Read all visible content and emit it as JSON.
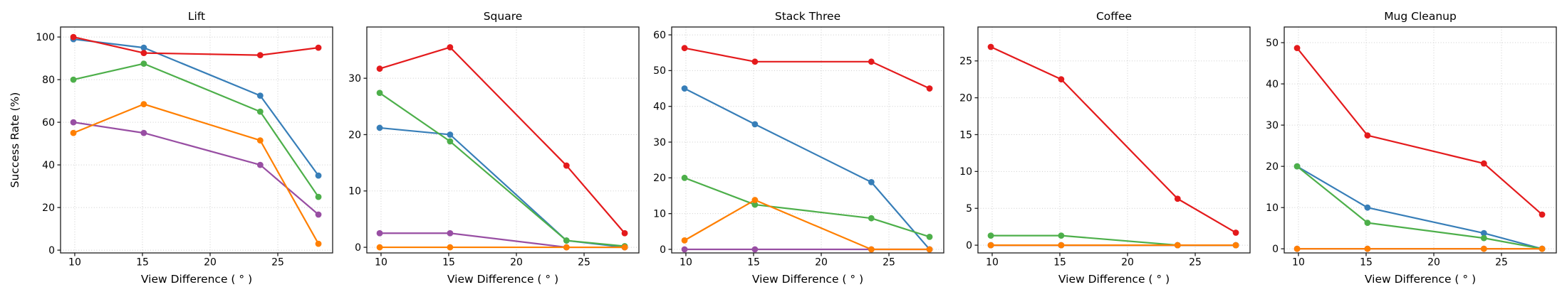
{
  "figure": {
    "background": "#ffffff",
    "shared_ylabel": "Success Rate (%)",
    "shared_xlabel": "View Difference ( ° )",
    "text_color": "#000000",
    "spine_color": "#1c1c1c",
    "grid_color": "#cccccc",
    "grid_style": "dotted",
    "series_palette": [
      {
        "name": "red",
        "color": "#e41a1c"
      },
      {
        "name": "blue",
        "color": "#377eb8"
      },
      {
        "name": "green",
        "color": "#4daf4a"
      },
      {
        "name": "purple",
        "color": "#984ea3"
      },
      {
        "name": "orange",
        "color": "#ff7f00"
      }
    ]
  },
  "chart_data": [
    {
      "type": "line",
      "title": "Lift",
      "xlabel": "View Difference ( ° )",
      "ylabel": "Success Rate (%)",
      "x": [
        9.9,
        15.1,
        23.7,
        28.0
      ],
      "xticks": [
        10,
        15,
        20,
        25
      ],
      "xlim": [
        8.95,
        29.05
      ],
      "yticks": [
        0,
        20,
        40,
        60,
        80,
        100
      ],
      "ylim": [
        -1.3,
        104.7
      ],
      "grid": true,
      "series": [
        {
          "name": "blue",
          "color": "#377eb8",
          "values": [
            99,
            95,
            72.5,
            35
          ]
        },
        {
          "name": "red",
          "color": "#e41a1c",
          "values": [
            100,
            92.5,
            91.5,
            95
          ]
        },
        {
          "name": "green",
          "color": "#4daf4a",
          "values": [
            80,
            87.5,
            65,
            25
          ]
        },
        {
          "name": "purple",
          "color": "#984ea3",
          "values": [
            60,
            55,
            40,
            16.7
          ]
        },
        {
          "name": "orange",
          "color": "#ff7f00",
          "values": [
            55,
            68.5,
            51.5,
            3
          ]
        }
      ]
    },
    {
      "type": "line",
      "title": "Square",
      "xlabel": "View Difference ( ° )",
      "x": [
        9.9,
        15.1,
        23.7,
        28.0
      ],
      "xticks": [
        10,
        15,
        20,
        25
      ],
      "xlim": [
        8.95,
        29.05
      ],
      "yticks": [
        0,
        10,
        20,
        30
      ],
      "ylim": [
        -1.0,
        39.1
      ],
      "grid": true,
      "series": [
        {
          "name": "blue",
          "color": "#377eb8",
          "values": [
            21.2,
            20,
            1.2,
            0
          ]
        },
        {
          "name": "red",
          "color": "#e41a1c",
          "values": [
            31.7,
            35.5,
            14.5,
            2.5
          ]
        },
        {
          "name": "green",
          "color": "#4daf4a",
          "values": [
            27.4,
            18.8,
            1.2,
            0.2
          ]
        },
        {
          "name": "purple",
          "color": "#984ea3",
          "values": [
            2.5,
            2.5,
            0,
            0
          ]
        },
        {
          "name": "orange",
          "color": "#ff7f00",
          "values": [
            0,
            0,
            0,
            0
          ]
        }
      ]
    },
    {
      "type": "line",
      "title": "Stack Three",
      "xlabel": "View Difference ( ° )",
      "x": [
        9.9,
        15.1,
        23.7,
        28.0
      ],
      "xticks": [
        10,
        15,
        20,
        25
      ],
      "xlim": [
        8.95,
        29.05
      ],
      "yticks": [
        0,
        10,
        20,
        30,
        40,
        50,
        60
      ],
      "ylim": [
        -1.0,
        62.2
      ],
      "grid": true,
      "series": [
        {
          "name": "blue",
          "color": "#377eb8",
          "values": [
            45,
            35,
            18.8,
            0
          ]
        },
        {
          "name": "red",
          "color": "#e41a1c",
          "values": [
            56.3,
            52.5,
            52.5,
            45
          ]
        },
        {
          "name": "green",
          "color": "#4daf4a",
          "values": [
            20,
            12.5,
            8.7,
            3.5
          ]
        },
        {
          "name": "purple",
          "color": "#984ea3",
          "values": [
            0,
            0,
            0,
            0
          ]
        },
        {
          "name": "orange",
          "color": "#ff7f00",
          "values": [
            2.5,
            13.8,
            0,
            0
          ]
        }
      ]
    },
    {
      "type": "line",
      "title": "Coffee",
      "xlabel": "View Difference ( ° )",
      "x": [
        9.9,
        15.1,
        23.7,
        28.0
      ],
      "xticks": [
        10,
        15,
        20,
        25
      ],
      "xlim": [
        8.95,
        29.05
      ],
      "yticks": [
        0,
        5,
        10,
        15,
        20,
        25
      ],
      "ylim": [
        -1.05,
        29.6
      ],
      "grid": true,
      "series": [
        {
          "name": "blue",
          "color": "#377eb8",
          "values": [
            0,
            0,
            0,
            0
          ]
        },
        {
          "name": "red",
          "color": "#e41a1c",
          "values": [
            26.9,
            22.5,
            6.3,
            1.7
          ]
        },
        {
          "name": "green",
          "color": "#4daf4a",
          "values": [
            1.3,
            1.3,
            0,
            0
          ]
        },
        {
          "name": "purple",
          "color": "#984ea3",
          "values": [
            0,
            0,
            0,
            0
          ]
        },
        {
          "name": "orange",
          "color": "#ff7f00",
          "values": [
            0,
            0,
            0,
            0
          ]
        }
      ]
    },
    {
      "type": "line",
      "title": "Mug Cleanup",
      "xlabel": "View Difference ( ° )",
      "x": [
        9.9,
        15.1,
        23.7,
        28.0
      ],
      "xticks": [
        10,
        15,
        20,
        25
      ],
      "xlim": [
        8.95,
        29.05
      ],
      "yticks": [
        0,
        10,
        20,
        30,
        40,
        50
      ],
      "ylim": [
        -1.0,
        53.8
      ],
      "grid": true,
      "series": [
        {
          "name": "blue",
          "color": "#377eb8",
          "values": [
            20,
            10,
            3.8,
            0
          ]
        },
        {
          "name": "red",
          "color": "#e41a1c",
          "values": [
            48.7,
            27.5,
            20.7,
            8.3
          ]
        },
        {
          "name": "green",
          "color": "#4daf4a",
          "values": [
            20,
            6.3,
            2.6,
            0
          ]
        },
        {
          "name": "purple",
          "color": "#984ea3",
          "values": [
            0,
            0,
            0,
            0
          ]
        },
        {
          "name": "orange",
          "color": "#ff7f00",
          "values": [
            0,
            0,
            0,
            0
          ]
        }
      ]
    }
  ]
}
